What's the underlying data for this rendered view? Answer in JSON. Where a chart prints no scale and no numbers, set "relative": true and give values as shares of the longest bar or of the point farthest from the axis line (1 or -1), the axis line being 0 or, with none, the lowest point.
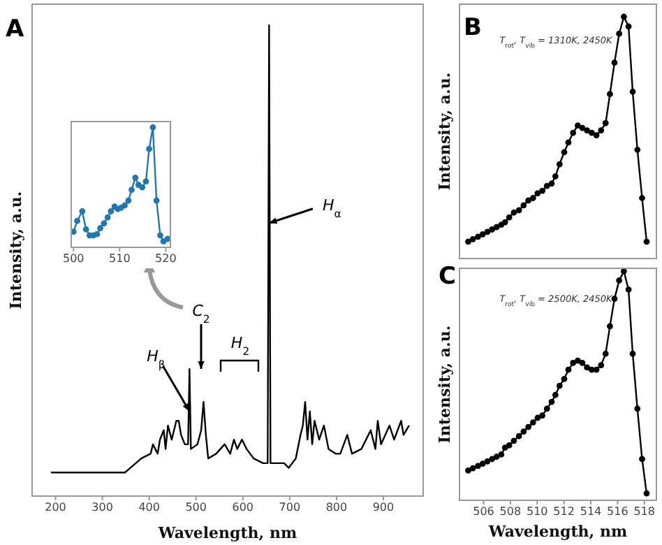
{
  "chart_data": [
    {
      "type": "line",
      "title": "A",
      "xlabel": "Wavelength, nm",
      "ylabel": "Intensity, a.u.",
      "relative": true,
      "marker": "none",
      "tick_labels": "x",
      "xlim": [
        150,
        985
      ],
      "xticks": [
        200,
        300,
        400,
        500,
        600,
        700,
        800,
        900
      ],
      "x": [
        190,
        348,
        383,
        403,
        408,
        418,
        423,
        431,
        435,
        440,
        448,
        458,
        463,
        468,
        476,
        483,
        486,
        489,
        503,
        511,
        516,
        521,
        526,
        543,
        561,
        573,
        581,
        588,
        598,
        608,
        623,
        643,
        653,
        656,
        659,
        673,
        688,
        698,
        713,
        723,
        728,
        733,
        738,
        743,
        748,
        753,
        763,
        773,
        783,
        798,
        808,
        823,
        833,
        853,
        873,
        883,
        888,
        895,
        913,
        923,
        938,
        943,
        955
      ],
      "series": [
        {
          "color": "#000000",
          "values": [
            0.05,
            0.05,
            0.08,
            0.09,
            0.11,
            0.09,
            0.12,
            0.14,
            0.1,
            0.15,
            0.12,
            0.16,
            0.16,
            0.13,
            0.11,
            0.11,
            0.27,
            0.1,
            0.11,
            0.14,
            0.2,
            0.13,
            0.08,
            0.09,
            0.11,
            0.09,
            0.12,
            0.1,
            0.12,
            0.1,
            0.08,
            0.07,
            0.07,
            1,
            0.07,
            0.07,
            0.07,
            0.06,
            0.08,
            0.13,
            0.15,
            0.2,
            0.12,
            0.18,
            0.11,
            0.16,
            0.12,
            0.15,
            0.1,
            0.09,
            0.09,
            0.13,
            0.09,
            0.1,
            0.14,
            0.1,
            0.16,
            0.11,
            0.15,
            0.12,
            0.16,
            0.13,
            0.15
          ]
        }
      ],
      "annotations": [
        {
          "text": "H$_{α}$",
          "x": 656,
          "y": 0.58
        },
        {
          "text": "H$_{β}$",
          "x": 486,
          "y": 0.18
        },
        "C$_{2}$",
        "H$_{2}$"
      ]
    },
    {
      "type": "line",
      "relative": true,
      "marker": "circle",
      "tick_labels": "x",
      "xlim": [
        499.5,
        521
      ],
      "xticks": [
        500,
        510,
        520
      ],
      "x": [
        500,
        500.8,
        501.9,
        502.7,
        503.5,
        504.3,
        505.1,
        505.8,
        506.6,
        507.4,
        508.1,
        508.9,
        509.6,
        510.3,
        511.1,
        511.9,
        512.6,
        513.4,
        514.1,
        514.9,
        515.7,
        516.4,
        517.2,
        518,
        518.8,
        519.5,
        520.4
      ],
      "series": [
        {
          "color": "#1f77b4",
          "values": [
            0.13,
            0.22,
            0.3,
            0.15,
            0.1,
            0.1,
            0.11,
            0.16,
            0.2,
            0.25,
            0.3,
            0.34,
            0.32,
            0.33,
            0.35,
            0.39,
            0.48,
            0.58,
            0.52,
            0.5,
            0.55,
            0.82,
            1,
            0.39,
            0.1,
            0.05,
            0.07
          ]
        }
      ]
    },
    {
      "type": "line",
      "title": "B",
      "ylabel": "Intensity, a.u.",
      "relative": true,
      "marker": "circle",
      "tick_labels": false,
      "xlim": [
        504.2,
        518.9
      ],
      "xticks": [
        506,
        508,
        510,
        512,
        514,
        516,
        518
      ],
      "x": [
        504.85,
        505.2,
        505.58,
        505.93,
        506.28,
        506.63,
        506.97,
        507.32,
        507.6,
        507.91,
        508.26,
        508.64,
        508.99,
        509.34,
        509.69,
        510.03,
        510.38,
        510.73,
        511.08,
        511.36,
        511.67,
        512.02,
        512.33,
        512.68,
        513.03,
        513.37,
        513.72,
        514.07,
        514.42,
        514.77,
        515.11,
        515.43,
        515.77,
        516.12,
        516.47,
        516.82,
        517.13,
        517.48,
        517.83,
        518.17
      ],
      "series": [
        {
          "color": "#000000",
          "values": [
            0.07,
            0.08,
            0.09,
            0.1,
            0.11,
            0.12,
            0.13,
            0.14,
            0.15,
            0.17,
            0.19,
            0.2,
            0.22,
            0.24,
            0.25,
            0.27,
            0.28,
            0.3,
            0.31,
            0.34,
            0.39,
            0.44,
            0.48,
            0.52,
            0.55,
            0.54,
            0.53,
            0.52,
            0.51,
            0.53,
            0.56,
            0.68,
            0.81,
            0.93,
            1,
            0.96,
            0.69,
            0.45,
            0.25,
            0.07
          ]
        }
      ],
      "annotations": [
        "T$_{rot}$, T$_{vib}$ = 1310K, 2450K"
      ]
    },
    {
      "type": "line",
      "title": "C",
      "xlabel": "Wavelength, nm",
      "ylabel": "Intensity, a.u.",
      "relative": true,
      "marker": "circle",
      "tick_labels": "x",
      "xlim": [
        504.2,
        518.9
      ],
      "xticks": [
        506,
        508,
        510,
        512,
        514,
        516,
        518
      ],
      "x": [
        504.85,
        505.2,
        505.58,
        505.93,
        506.28,
        506.63,
        506.97,
        507.32,
        507.6,
        507.91,
        508.26,
        508.64,
        508.99,
        509.34,
        509.69,
        510.03,
        510.38,
        510.73,
        511.08,
        511.36,
        511.67,
        512.02,
        512.33,
        512.68,
        513.03,
        513.37,
        513.72,
        514.07,
        514.42,
        514.77,
        515.11,
        515.43,
        515.77,
        516.12,
        516.47,
        516.82,
        517.13,
        517.48,
        517.83,
        518.17
      ],
      "series": [
        {
          "color": "#000000",
          "values": [
            0.13,
            0.14,
            0.15,
            0.16,
            0.17,
            0.18,
            0.19,
            0.2,
            0.23,
            0.24,
            0.26,
            0.28,
            0.3,
            0.32,
            0.34,
            0.36,
            0.37,
            0.4,
            0.43,
            0.46,
            0.5,
            0.53,
            0.57,
            0.6,
            0.61,
            0.6,
            0.58,
            0.57,
            0.57,
            0.59,
            0.64,
            0.76,
            0.88,
            0.96,
            1,
            0.92,
            0.64,
            0.4,
            0.18,
            0.03
          ]
        }
      ],
      "annotations": [
        "T$_{rot}$, T$_{vib}$ = 2500K, 2450K"
      ]
    }
  ]
}
